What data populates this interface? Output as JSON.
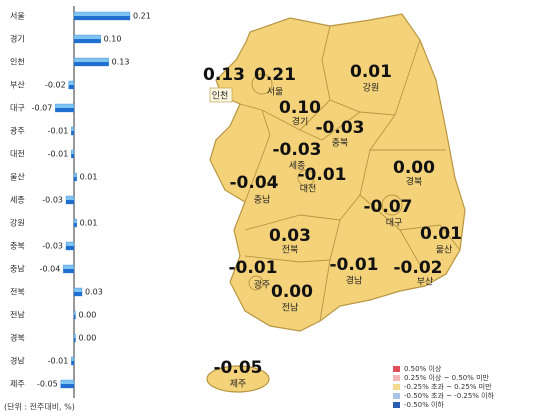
{
  "chart_data": {
    "type": "bar",
    "orientation": "horizontal",
    "categories": [
      "서울",
      "경기",
      "인천",
      "부산",
      "대구",
      "광주",
      "대전",
      "울산",
      "세종",
      "강원",
      "충북",
      "충남",
      "전북",
      "전남",
      "경북",
      "경남",
      "제주"
    ],
    "values": [
      0.21,
      0.1,
      0.13,
      -0.02,
      -0.07,
      -0.01,
      -0.01,
      0.01,
      -0.03,
      0.01,
      -0.03,
      -0.04,
      0.03,
      0,
      0,
      -0.01,
      -0.05
    ],
    "value_labels": [
      "0.21",
      "0.10",
      "0.13",
      "-0.02",
      "-0.07",
      "-0.01",
      "-0.01",
      "0.01",
      "-0.03",
      "0.01",
      "-0.03",
      "-0.04",
      "0.03",
      "0.00",
      "0.00",
      "-0.01",
      "-0.05"
    ],
    "color": "#1f6fd1",
    "xlim": [
      -0.08,
      0.22
    ],
    "note": "(단위 : 전주대비, %)",
    "legend": [
      {
        "label": "0.50% 이상",
        "color": "#e0505a"
      },
      {
        "label": "0.25% 이상 ~ 0.50% 미만",
        "color": "#f2b8b8"
      },
      {
        "label": "-0.25% 초과 ~ 0.25% 미만",
        "color": "#f4da8c"
      },
      {
        "label": "-0.50% 초과 ~ -0.25% 이하",
        "color": "#a9c4e6"
      },
      {
        "label": "-0.50% 이하",
        "color": "#2a5db0"
      }
    ]
  }
}
